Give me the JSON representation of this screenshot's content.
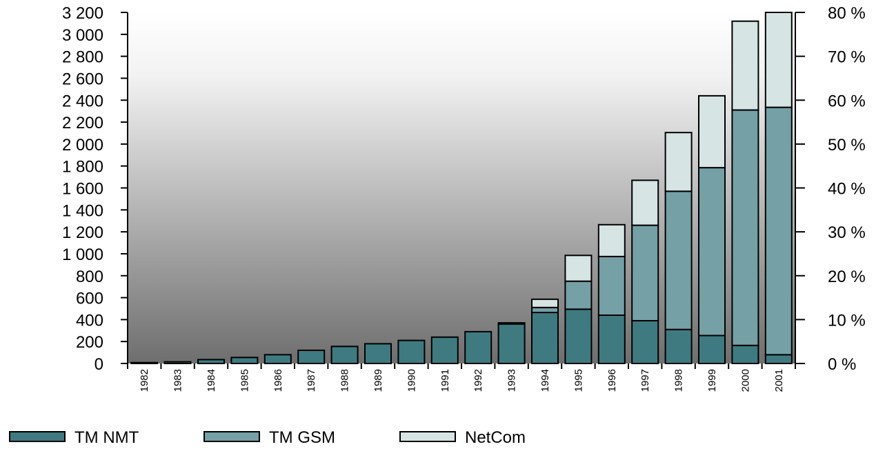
{
  "chart_data": {
    "type": "bar",
    "stacked": true,
    "categories": [
      "1982",
      "1983",
      "1984",
      "1985",
      "1986",
      "1987",
      "1988",
      "1989",
      "1990",
      "1991",
      "1992",
      "1993",
      "1994",
      "1995",
      "1996",
      "1997",
      "1998",
      "1999",
      "2000",
      "2001"
    ],
    "series": [
      {
        "name": "TM NMT",
        "color": "#3f7a80",
        "values": [
          8,
          15,
          35,
          55,
          80,
          120,
          155,
          180,
          210,
          240,
          290,
          360,
          465,
          495,
          440,
          390,
          310,
          255,
          165,
          80
        ]
      },
      {
        "name": "TM GSM",
        "color": "#74a0a6",
        "values": [
          0,
          0,
          0,
          0,
          0,
          0,
          0,
          0,
          0,
          0,
          0,
          10,
          45,
          255,
          535,
          870,
          1260,
          1530,
          2145,
          2255
        ]
      },
      {
        "name": "NetCom",
        "color": "#d6e4e3",
        "values": [
          0,
          0,
          0,
          0,
          0,
          0,
          0,
          0,
          0,
          0,
          0,
          0,
          75,
          235,
          290,
          410,
          535,
          655,
          810,
          865
        ]
      }
    ],
    "y_left": {
      "ylim": [
        0,
        3200
      ],
      "tick_labels": [
        "0",
        "200",
        "400",
        "600",
        "800",
        "1 000",
        "1 200",
        "1 400",
        "1 600",
        "1 800",
        "2 000",
        "2 200",
        "2 400",
        "2 600",
        "2 800",
        "3 000",
        "3 200"
      ]
    },
    "y_right": {
      "ylim": [
        0,
        80
      ],
      "tick_labels": [
        "0 %",
        "10 %",
        "20 %",
        "30 %",
        "40 %",
        "50 %",
        "60 %",
        "70 %",
        "80 %"
      ]
    },
    "title": "",
    "xlabel": "",
    "ylabel": "",
    "grid": false,
    "legend_position": "bottom-left",
    "background": "vertical gradient, dark gray at bottom to white at top"
  }
}
